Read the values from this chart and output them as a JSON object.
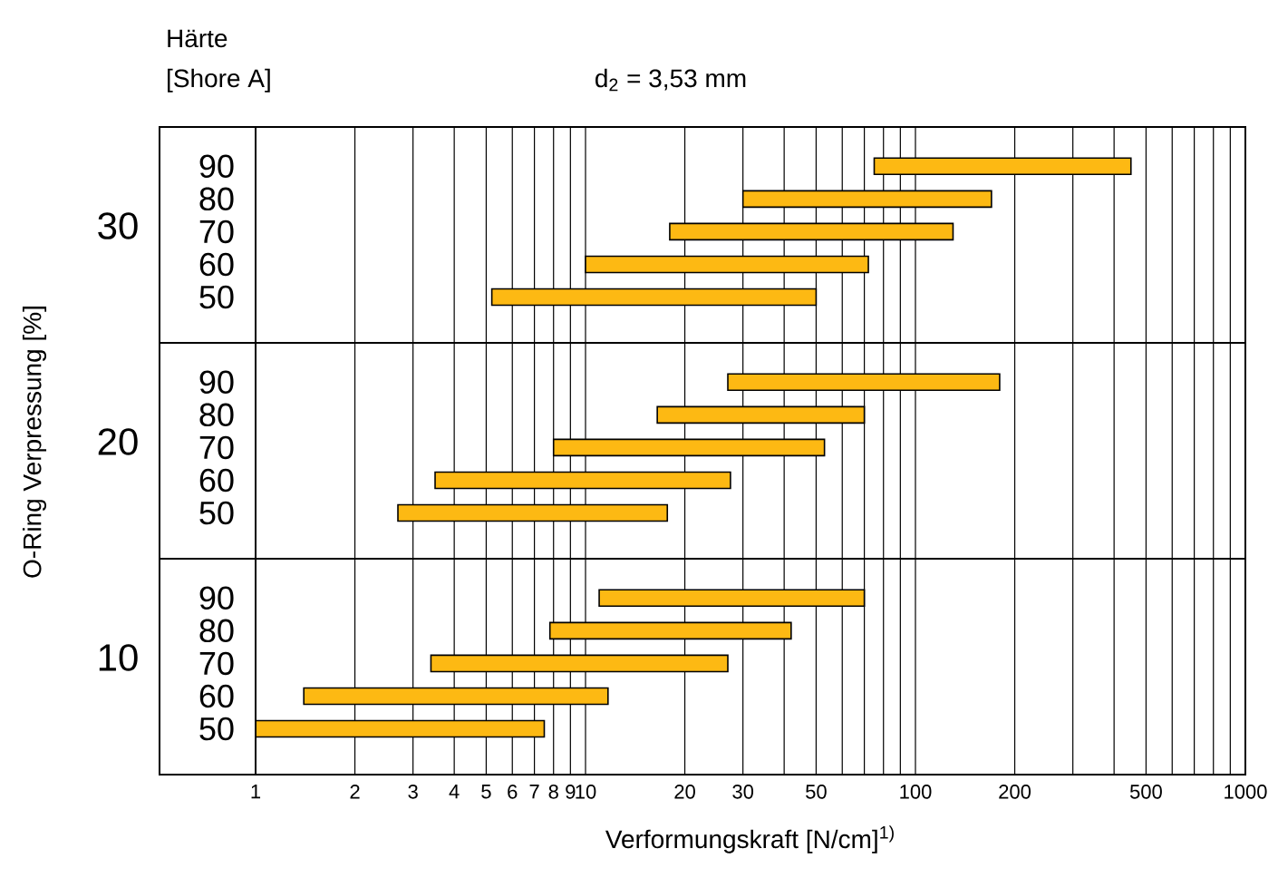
{
  "chart_data": [
    {
      "type": "bar",
      "orientation": "horizontal",
      "title": "d$_{2}$ = 3,53 mm",
      "annotations": [
        "Härte",
        "[Shore A]"
      ],
      "ylabel": "30",
      "categories": [
        "90",
        "80",
        "70",
        "60",
        "50"
      ],
      "base": [
        75,
        30,
        18,
        10,
        5.2
      ],
      "values": [
        375,
        140,
        112,
        62,
        44.8
      ],
      "color": "#fdb913",
      "log": "x",
      "xlim": [
        1,
        1000
      ],
      "grid": "x",
      "tick_labels": "y",
      "xticks": [
        1,
        2,
        3,
        4,
        5,
        6,
        7,
        8,
        9,
        10,
        20,
        30,
        {
          "value": 40,
          "label": null
        },
        50,
        {
          "value": 60,
          "label": null
        },
        {
          "value": 70,
          "label": null
        },
        {
          "value": 80,
          "label": null
        },
        {
          "value": 90,
          "label": null
        },
        100,
        200,
        {
          "value": 300,
          "label": null
        },
        {
          "value": 400,
          "label": null
        },
        500,
        {
          "value": 600,
          "label": null
        },
        {
          "value": 700,
          "label": null
        },
        {
          "value": 800,
          "label": null
        },
        {
          "value": 900,
          "label": null
        },
        1000
      ]
    },
    {
      "type": "bar",
      "orientation": "horizontal",
      "annotations": [
        "O-Ring Verpressung [%]"
      ],
      "ylabel": "20",
      "categories": [
        "90",
        "80",
        "70",
        "60",
        "50"
      ],
      "base": [
        27,
        16.5,
        8,
        3.5,
        2.7
      ],
      "values": [
        153,
        53.5,
        45,
        24,
        15
      ],
      "color": "#fdb913",
      "log": "x",
      "xlim": [
        1,
        1000
      ],
      "grid": "x",
      "tick_labels": "y",
      "xticks": [
        1,
        2,
        3,
        4,
        5,
        6,
        7,
        8,
        9,
        10,
        20,
        30,
        {
          "value": 40,
          "label": null
        },
        50,
        {
          "value": 60,
          "label": null
        },
        {
          "value": 70,
          "label": null
        },
        {
          "value": 80,
          "label": null
        },
        {
          "value": 90,
          "label": null
        },
        100,
        200,
        {
          "value": 300,
          "label": null
        },
        {
          "value": 400,
          "label": null
        },
        500,
        {
          "value": 600,
          "label": null
        },
        {
          "value": 700,
          "label": null
        },
        {
          "value": 800,
          "label": null
        },
        {
          "value": 900,
          "label": null
        },
        1000
      ]
    },
    {
      "type": "bar",
      "orientation": "horizontal",
      "xlabel": "Verformungskraft [N/cm]$^{1)}$",
      "ylabel": "10",
      "categories": [
        "90",
        "80",
        "70",
        "60",
        "50"
      ],
      "base": [
        11,
        7.8,
        3.4,
        1.4,
        1
      ],
      "values": [
        59,
        34.2,
        23.6,
        10.3,
        6.5
      ],
      "color": "#fdb913",
      "log": "x",
      "xlim": [
        1,
        1000
      ],
      "grid": "x",
      "xticks": [
        1,
        2,
        3,
        4,
        5,
        6,
        7,
        8,
        9,
        10,
        20,
        30,
        {
          "value": 40,
          "label": null
        },
        50,
        {
          "value": 60,
          "label": null
        },
        {
          "value": 70,
          "label": null
        },
        {
          "value": 80,
          "label": null
        },
        {
          "value": 90,
          "label": null
        },
        100,
        200,
        {
          "value": 300,
          "label": null
        },
        {
          "value": 400,
          "label": null
        },
        500,
        {
          "value": 600,
          "label": null
        },
        {
          "value": 700,
          "label": null
        },
        {
          "value": 800,
          "label": null
        },
        {
          "value": 900,
          "label": null
        },
        1000
      ]
    }
  ]
}
